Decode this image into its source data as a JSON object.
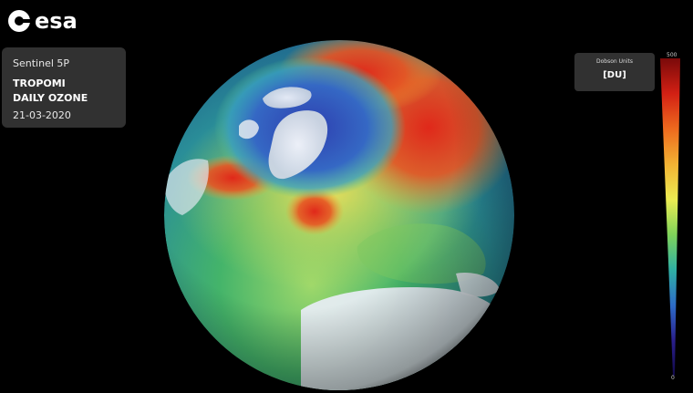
{
  "brand": {
    "logo_text": "esa"
  },
  "info_panel": {
    "mission": "Sentinel 5P",
    "instrument": "TROPOMI",
    "product": "DAILY OZONE",
    "date": "21-03-2020"
  },
  "legend": {
    "title": "Dobson Units",
    "unit": "[DU]",
    "max": "500",
    "min": "0",
    "colors": [
      "#7a0a0a",
      "#d32014",
      "#ee6a1e",
      "#f2b233",
      "#ecec52",
      "#7fd35a",
      "#2fb0a4",
      "#2d6cc8",
      "#2a1f8c",
      "#120a4a"
    ]
  },
  "map": {
    "view": "orthographic-north-atlantic",
    "colors": {
      "ocean_high": "#d83a1a",
      "mid": "#e8e05a",
      "low": "#3fb26a",
      "vortex": "#3a4fc0",
      "ice": "#eef2f6",
      "space": "#000000"
    }
  }
}
